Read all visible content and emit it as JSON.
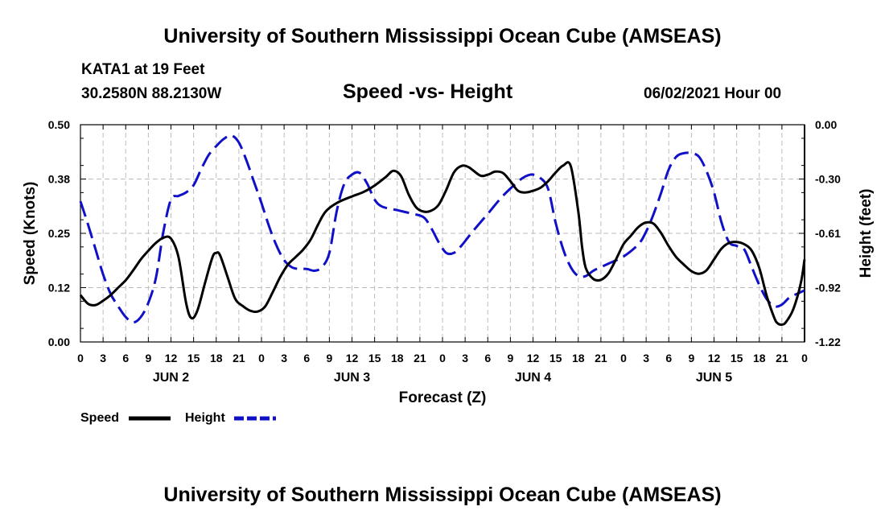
{
  "header": {
    "title": "University of Southern Mississippi Ocean Cube (AMSEAS)",
    "station": "KATA1 at 19 Feet",
    "coords": "30.2580N  88.2130W",
    "subtitle": "Speed -vs- Height",
    "datetime": "06/02/2021 Hour 00"
  },
  "footer": {
    "title": "University of Southern Mississippi Ocean Cube (AMSEAS)"
  },
  "chart_data": {
    "type": "line",
    "xlabel": "Forecast (Z)",
    "ylabel_left": "Speed (Knots)",
    "ylabel_right": "Height (feet)",
    "x_range_hours": [
      0,
      96
    ],
    "ylim_left": [
      0,
      0.5
    ],
    "ylim_right": [
      -1.22,
      0.0
    ],
    "y_ticks_left": [
      "0.00",
      "0.12",
      "0.25",
      "0.38",
      "0.50"
    ],
    "y_ticks_right": [
      "-1.22",
      "-0.92",
      "-0.61",
      "-0.30",
      "0.00"
    ],
    "x_tick_labels": [
      "0",
      "3",
      "6",
      "9",
      "12",
      "15",
      "18",
      "21",
      "0",
      "3",
      "6",
      "9",
      "12",
      "15",
      "18",
      "21",
      "0",
      "3",
      "6",
      "9",
      "12",
      "15",
      "18",
      "21",
      "0",
      "3",
      "6",
      "9",
      "12",
      "15",
      "18",
      "21",
      "0"
    ],
    "day_labels": [
      {
        "label": "JUN 2",
        "hour": 12
      },
      {
        "label": "JUN 3",
        "hour": 36
      },
      {
        "label": "JUN 4",
        "hour": 60
      },
      {
        "label": "JUN 5",
        "hour": 84
      }
    ],
    "grid": true,
    "legend": [
      {
        "label": "Speed",
        "color": "#000000",
        "style": "solid"
      },
      {
        "label": "Height",
        "color": "#1010c8",
        "style": "dashed"
      }
    ],
    "series": [
      {
        "name": "Speed",
        "axis": "left",
        "color": "#000000",
        "dash": "none",
        "points": [
          [
            0,
            0.108
          ],
          [
            1,
            0.088
          ],
          [
            2,
            0.085
          ],
          [
            3,
            0.095
          ],
          [
            4,
            0.108
          ],
          [
            5,
            0.125
          ],
          [
            6,
            0.142
          ],
          [
            7,
            0.165
          ],
          [
            8,
            0.19
          ],
          [
            9,
            0.21
          ],
          [
            10,
            0.228
          ],
          [
            11,
            0.24
          ],
          [
            12,
            0.238
          ],
          [
            13,
            0.195
          ],
          [
            14,
            0.09
          ],
          [
            14.7,
            0.055
          ],
          [
            15.5,
            0.072
          ],
          [
            16.5,
            0.135
          ],
          [
            17.5,
            0.195
          ],
          [
            18,
            0.205
          ],
          [
            18.5,
            0.2
          ],
          [
            19.5,
            0.15
          ],
          [
            20.5,
            0.1
          ],
          [
            21.5,
            0.083
          ],
          [
            22.5,
            0.072
          ],
          [
            23.5,
            0.07
          ],
          [
            24.5,
            0.082
          ],
          [
            25.5,
            0.115
          ],
          [
            26.5,
            0.15
          ],
          [
            27.5,
            0.178
          ],
          [
            28.5,
            0.195
          ],
          [
            29.5,
            0.212
          ],
          [
            30.5,
            0.235
          ],
          [
            31.5,
            0.27
          ],
          [
            32.5,
            0.3
          ],
          [
            34,
            0.32
          ],
          [
            36,
            0.335
          ],
          [
            37.5,
            0.345
          ],
          [
            39,
            0.36
          ],
          [
            40.5,
            0.38
          ],
          [
            41.5,
            0.394
          ],
          [
            42.5,
            0.382
          ],
          [
            43.5,
            0.34
          ],
          [
            44.5,
            0.31
          ],
          [
            45.5,
            0.3
          ],
          [
            46.5,
            0.302
          ],
          [
            47.5,
            0.316
          ],
          [
            48.5,
            0.35
          ],
          [
            49.5,
            0.39
          ],
          [
            50.5,
            0.405
          ],
          [
            51.5,
            0.402
          ],
          [
            53,
            0.383
          ],
          [
            54,
            0.385
          ],
          [
            55,
            0.392
          ],
          [
            56,
            0.389
          ],
          [
            57,
            0.37
          ],
          [
            58,
            0.348
          ],
          [
            59,
            0.344
          ],
          [
            60,
            0.348
          ],
          [
            61,
            0.355
          ],
          [
            62,
            0.37
          ],
          [
            63,
            0.39
          ],
          [
            64,
            0.406
          ],
          [
            65,
            0.405
          ],
          [
            66,
            0.3
          ],
          [
            66.5,
            0.22
          ],
          [
            67,
            0.17
          ],
          [
            68,
            0.145
          ],
          [
            69,
            0.143
          ],
          [
            70,
            0.158
          ],
          [
            71,
            0.19
          ],
          [
            72,
            0.225
          ],
          [
            73,
            0.245
          ],
          [
            74,
            0.265
          ],
          [
            75,
            0.275
          ],
          [
            76,
            0.272
          ],
          [
            77,
            0.25
          ],
          [
            78,
            0.22
          ],
          [
            79,
            0.195
          ],
          [
            80,
            0.178
          ],
          [
            81,
            0.163
          ],
          [
            82,
            0.157
          ],
          [
            83,
            0.165
          ],
          [
            84,
            0.19
          ],
          [
            85,
            0.215
          ],
          [
            86,
            0.228
          ],
          [
            87,
            0.23
          ],
          [
            88,
            0.225
          ],
          [
            89,
            0.21
          ],
          [
            90,
            0.17
          ],
          [
            91,
            0.105
          ],
          [
            92,
            0.055
          ],
          [
            92.5,
            0.042
          ],
          [
            93,
            0.04
          ],
          [
            93.5,
            0.045
          ],
          [
            94.5,
            0.075
          ],
          [
            95.5,
            0.135
          ],
          [
            96,
            0.19
          ]
        ]
      },
      {
        "name": "Height",
        "axis": "right",
        "color": "#1010c8",
        "dash": "20,8",
        "points": [
          [
            0,
            -0.43
          ],
          [
            1,
            -0.56
          ],
          [
            2,
            -0.7
          ],
          [
            3,
            -0.84
          ],
          [
            4,
            -0.95
          ],
          [
            5,
            -1.02
          ],
          [
            6,
            -1.08
          ],
          [
            7,
            -1.11
          ],
          [
            8,
            -1.08
          ],
          [
            9,
            -1.0
          ],
          [
            10,
            -0.86
          ],
          [
            11,
            -0.6
          ],
          [
            12,
            -0.42
          ],
          [
            13,
            -0.4
          ],
          [
            14,
            -0.38
          ],
          [
            15,
            -0.34
          ],
          [
            16,
            -0.25
          ],
          [
            17,
            -0.17
          ],
          [
            18,
            -0.12
          ],
          [
            19,
            -0.08
          ],
          [
            20,
            -0.06
          ],
          [
            21,
            -0.1
          ],
          [
            22,
            -0.2
          ],
          [
            23,
            -0.32
          ],
          [
            24,
            -0.44
          ],
          [
            25,
            -0.57
          ],
          [
            26,
            -0.68
          ],
          [
            27,
            -0.76
          ],
          [
            28,
            -0.8
          ],
          [
            29,
            -0.81
          ],
          [
            30,
            -0.81
          ],
          [
            31,
            -0.82
          ],
          [
            32,
            -0.8
          ],
          [
            33,
            -0.72
          ],
          [
            34,
            -0.48
          ],
          [
            35,
            -0.33
          ],
          [
            36,
            -0.28
          ],
          [
            37,
            -0.27
          ],
          [
            38,
            -0.33
          ],
          [
            39,
            -0.42
          ],
          [
            40,
            -0.46
          ],
          [
            42,
            -0.48
          ],
          [
            44,
            -0.5
          ],
          [
            45.5,
            -0.52
          ],
          [
            46.5,
            -0.58
          ],
          [
            47.5,
            -0.66
          ],
          [
            48.5,
            -0.72
          ],
          [
            49.5,
            -0.72
          ],
          [
            50.5,
            -0.68
          ],
          [
            52,
            -0.6
          ],
          [
            54,
            -0.5
          ],
          [
            56,
            -0.4
          ],
          [
            58,
            -0.32
          ],
          [
            59,
            -0.29
          ],
          [
            60,
            -0.28
          ],
          [
            61,
            -0.3
          ],
          [
            62,
            -0.36
          ],
          [
            63,
            -0.55
          ],
          [
            64,
            -0.7
          ],
          [
            65,
            -0.8
          ],
          [
            66,
            -0.85
          ],
          [
            67,
            -0.85
          ],
          [
            68,
            -0.82
          ],
          [
            69,
            -0.8
          ],
          [
            70,
            -0.78
          ],
          [
            72,
            -0.74
          ],
          [
            74,
            -0.67
          ],
          [
            75,
            -0.6
          ],
          [
            76,
            -0.5
          ],
          [
            77,
            -0.38
          ],
          [
            78,
            -0.25
          ],
          [
            79,
            -0.18
          ],
          [
            80,
            -0.16
          ],
          [
            81,
            -0.16
          ],
          [
            82,
            -0.18
          ],
          [
            83,
            -0.26
          ],
          [
            84,
            -0.38
          ],
          [
            85,
            -0.55
          ],
          [
            86,
            -0.66
          ],
          [
            87,
            -0.68
          ],
          [
            88,
            -0.7
          ],
          [
            89,
            -0.8
          ],
          [
            90,
            -0.9
          ],
          [
            91,
            -0.98
          ],
          [
            92,
            -1.02
          ],
          [
            93,
            -1.01
          ],
          [
            94,
            -0.97
          ],
          [
            95,
            -0.95
          ],
          [
            96,
            -0.93
          ]
        ]
      }
    ]
  }
}
